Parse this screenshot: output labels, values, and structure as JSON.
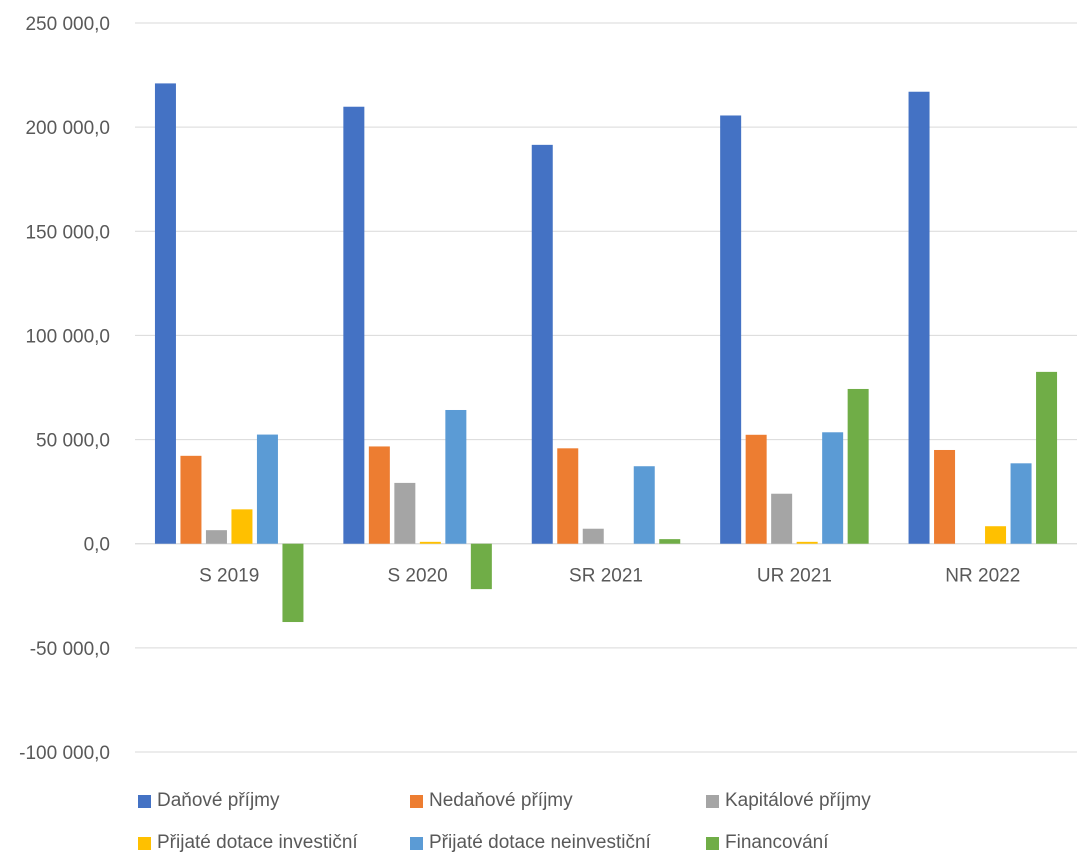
{
  "chart_data": {
    "type": "bar",
    "categories": [
      "S 2019",
      "S 2020",
      "SR 2021",
      "UR 2021",
      "NR 2022"
    ],
    "ylim": [
      -100000,
      250000
    ],
    "yticks": [
      250000,
      200000,
      150000,
      100000,
      50000,
      0,
      -50000,
      -100000
    ],
    "ytick_labels": [
      "250 000,0",
      "200 000,0",
      "150 000,0",
      "100 000,0",
      "50 000,0",
      "0,0",
      "-50 000,0",
      "-100 000,0"
    ],
    "grid": true,
    "legend_position": "bottom",
    "series": [
      {
        "name": "Daňové příjmy",
        "color": "#4472C4",
        "values": [
          221000,
          209800,
          191500,
          205600,
          217000
        ]
      },
      {
        "name": "Nedaňové příjmy",
        "color": "#ED7D31",
        "values": [
          42200,
          46700,
          45800,
          52300,
          45000
        ]
      },
      {
        "name": "Kapitálové příjmy",
        "color": "#A5A5A5",
        "values": [
          6500,
          29200,
          7200,
          24000,
          0
        ]
      },
      {
        "name": "Přijaté dotace investiční",
        "color": "#FFC000",
        "values": [
          16500,
          900,
          0,
          900,
          8400
        ]
      },
      {
        "name": "Přijaté dotace neinvestiční",
        "color": "#5B9BD5",
        "values": [
          52400,
          64200,
          37200,
          53500,
          38600
        ]
      },
      {
        "name": "Financování",
        "color": "#70AD47",
        "values": [
          -37600,
          -21800,
          2200,
          74300,
          82500
        ]
      }
    ]
  }
}
